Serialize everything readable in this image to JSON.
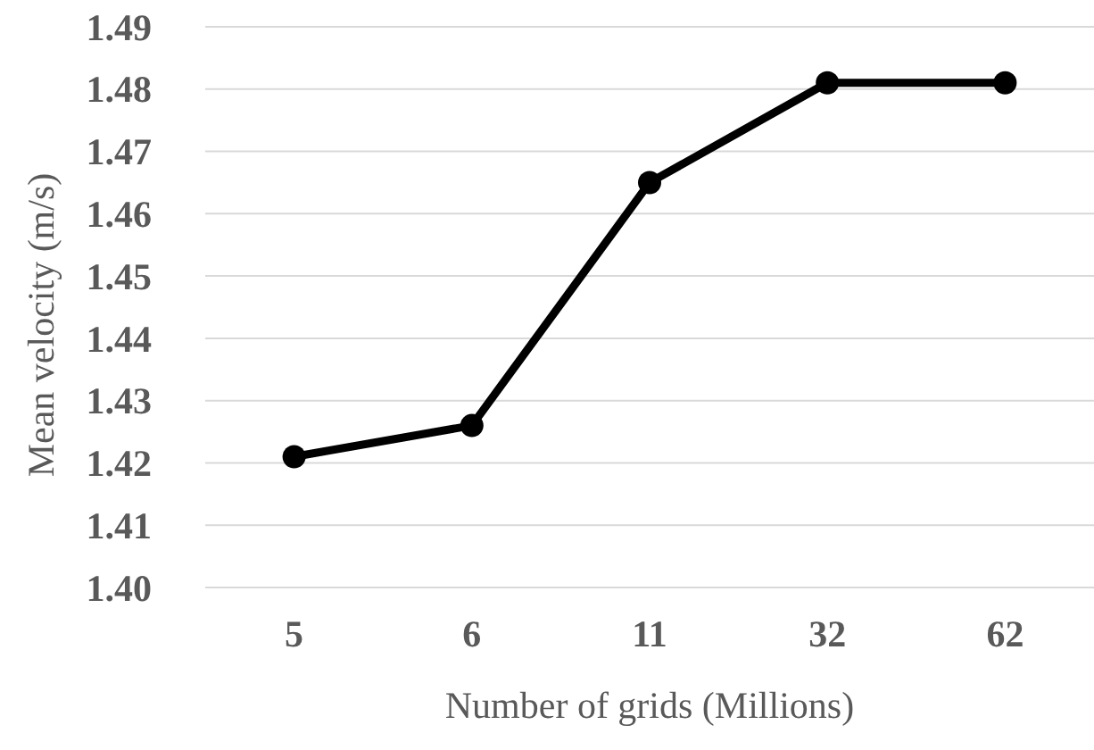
{
  "chart_data": {
    "type": "line",
    "xlabel": "Number of grids (Millions)",
    "ylabel": "Mean velocity (m/s)",
    "categories": [
      "5",
      "6",
      "11",
      "32",
      "62"
    ],
    "series": [
      {
        "color": "#000000",
        "values": [
          1.421,
          1.426,
          1.465,
          1.481,
          1.481
        ]
      }
    ],
    "ylim": [
      1.4,
      1.49
    ],
    "yticks": [
      {
        "value": 1.4,
        "label": "1.40"
      },
      1.41,
      1.42,
      1.43,
      1.44,
      1.45,
      1.46,
      1.47,
      1.48,
      1.49
    ],
    "grid": "y",
    "marker": "circle",
    "line_style": "solid"
  }
}
